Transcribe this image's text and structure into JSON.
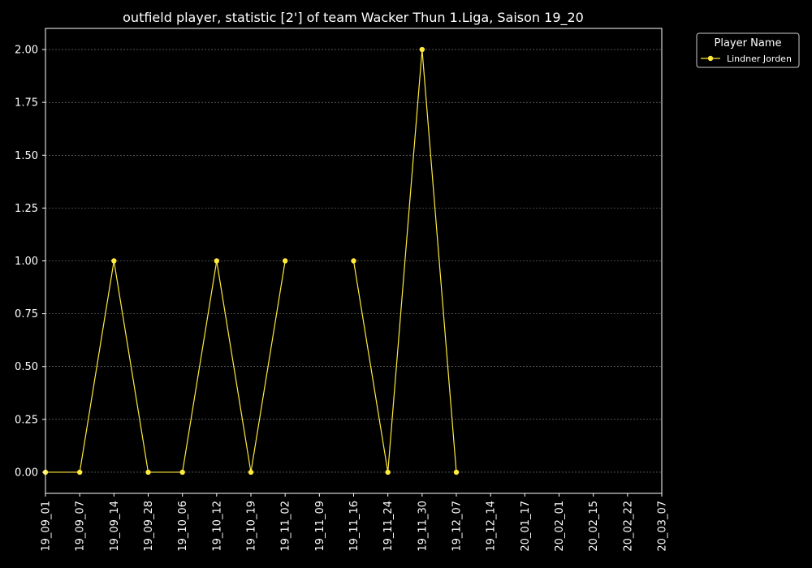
{
  "chart_data": {
    "type": "line",
    "title": "outfield player, statistic [2'] of team Wacker Thun 1.Liga, Saison 19_20",
    "xlabel": "",
    "ylabel": "",
    "categories": [
      "19_09_01",
      "19_09_07",
      "19_09_14",
      "19_09_28",
      "19_10_06",
      "19_10_12",
      "19_10_19",
      "19_11_02",
      "19_11_09",
      "19_11_16",
      "19_11_24",
      "19_11_30",
      "19_12_07",
      "19_12_14",
      "20_01_17",
      "20_02_01",
      "20_02_15",
      "20_02_22",
      "20_03_07"
    ],
    "series": [
      {
        "name": "Lindner Jorden",
        "color": "#ffeb3b",
        "values": [
          0,
          0,
          1,
          0,
          0,
          1,
          0,
          1,
          null,
          1,
          0,
          2,
          0,
          null,
          null,
          null,
          null,
          null,
          null
        ]
      }
    ],
    "ylim": [
      -0.1,
      2.1
    ],
    "yticks": [
      "0.00",
      "0.25",
      "0.50",
      "0.75",
      "1.00",
      "1.25",
      "1.50",
      "1.75",
      "2.00"
    ],
    "grid": true,
    "legend": {
      "title": "Player Name",
      "placement": "outside-top-right"
    },
    "colors": {
      "background": "#000000",
      "foreground": "#ffffff",
      "grid": "#888888"
    }
  }
}
